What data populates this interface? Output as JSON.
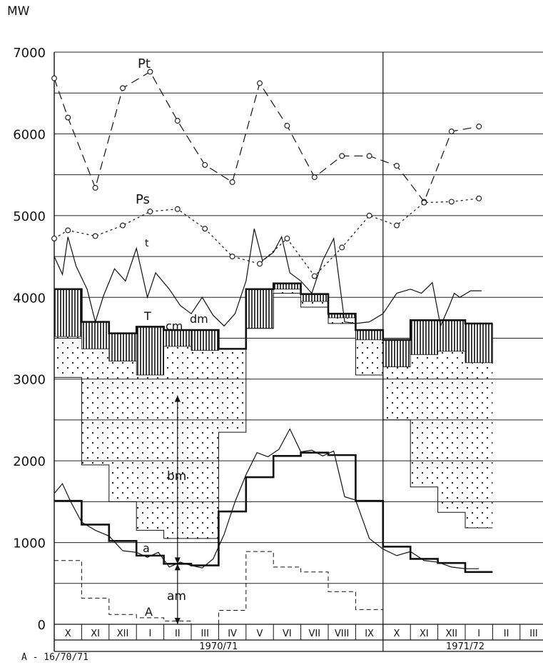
{
  "figure": {
    "unit_label": "MW",
    "footer_code": "A - 16/70/71"
  },
  "chart_data": {
    "type": "line",
    "ylim": [
      0,
      7000
    ],
    "y_ticks": [
      0,
      1000,
      2000,
      3000,
      4000,
      5000,
      6000,
      7000
    ],
    "grid": true,
    "months": [
      "X",
      "XI",
      "XII",
      "I",
      "II",
      "III",
      "IV",
      "V",
      "VI",
      "VII",
      "VIII",
      "IX",
      "X",
      "XI",
      "XII",
      "I",
      "II",
      "III"
    ],
    "periods": [
      {
        "label": "1970/71",
        "months": 12
      },
      {
        "label": "1971/72",
        "months": 6
      }
    ],
    "series": [
      {
        "name": "Pt",
        "style": "dashed",
        "x": [
          0,
          0.5,
          1.5,
          2.5,
          3.5,
          4.5,
          5.5,
          6.5,
          7.5,
          8.5,
          9.5,
          10.5,
          11.5,
          12.5,
          13.5,
          14.5,
          15.5
        ],
        "values": [
          6680,
          6200,
          5340,
          6560,
          6760,
          6160,
          5620,
          5410,
          6620,
          6100,
          5470,
          5730,
          5730,
          5610,
          5170,
          6030,
          6090
        ]
      },
      {
        "name": "Ps",
        "style": "dotted",
        "x": [
          0,
          0.5,
          1.5,
          2.5,
          3.5,
          4.5,
          5.5,
          6.5,
          7.5,
          8.5,
          9.5,
          10.5,
          11.5,
          12.5,
          13.5,
          14.5,
          15.5
        ],
        "values": [
          4720,
          4820,
          4750,
          4880,
          5050,
          5080,
          4840,
          4500,
          4410,
          4720,
          4260,
          4610,
          5000,
          4880,
          5160,
          5170,
          5210
        ]
      },
      {
        "name": "t",
        "style": "thin",
        "x": [
          0,
          0.3,
          0.5,
          0.8,
          1.2,
          1.5,
          1.8,
          2.2,
          2.6,
          3.0,
          3.4,
          3.7,
          4.2,
          4.6,
          5.0,
          5.4,
          5.8,
          6.2,
          6.6,
          7.0,
          7.3,
          7.6,
          8.0,
          8.3,
          8.6,
          9.0,
          9.4,
          9.8,
          10.2,
          10.6,
          11.0,
          11.5,
          12.0,
          12.5,
          13.0,
          13.4,
          13.8,
          14.1,
          14.4,
          14.6,
          14.8,
          15.2,
          15.6
        ],
        "values": [
          4500,
          4280,
          4740,
          4380,
          4100,
          3700,
          4020,
          4350,
          4200,
          4600,
          4000,
          4300,
          4100,
          3900,
          3800,
          4000,
          3780,
          3650,
          3800,
          4200,
          4840,
          4450,
          4550,
          4740,
          4300,
          4200,
          4050,
          4450,
          4720,
          3700,
          3680,
          3700,
          3800,
          4050,
          4100,
          4050,
          4180,
          3650,
          3880,
          4050,
          4000,
          4080,
          4080
        ]
      },
      {
        "name": "a",
        "style": "thin",
        "x": [
          0,
          0.3,
          0.6,
          1.0,
          1.5,
          2.0,
          2.5,
          3.0,
          3.4,
          3.8,
          4.2,
          4.6,
          5.0,
          5.4,
          5.8,
          6.2,
          6.6,
          7.0,
          7.4,
          7.8,
          8.2,
          8.6,
          9.0,
          9.4,
          9.8,
          10.2,
          10.6,
          11.0,
          11.5,
          12.0,
          12.5,
          13.0,
          13.5,
          14.0,
          14.5,
          15.0,
          15.5
        ],
        "values": [
          1600,
          1720,
          1500,
          1250,
          1150,
          1080,
          900,
          880,
          820,
          880,
          700,
          760,
          720,
          690,
          800,
          1100,
          1500,
          1830,
          2100,
          2050,
          2140,
          2390,
          2110,
          2130,
          2060,
          2120,
          1560,
          1520,
          1050,
          920,
          840,
          890,
          780,
          760,
          700,
          680,
          680
        ]
      }
    ],
    "monthly_blocks": {
      "T": [
        4100,
        3700,
        3560,
        3640,
        3600,
        3600,
        3370,
        4100,
        4170,
        4040,
        3800,
        3600,
        3480,
        3720,
        3720,
        3680
      ],
      "b": [
        3520,
        3370,
        3220,
        3050,
        3400,
        3350,
        3370,
        3620,
        4100,
        3950,
        3750,
        3480,
        3150,
        3300,
        3340,
        3200
      ],
      "c": [
        3020,
        2000,
        1850,
        1500,
        2800,
        2700,
        2350,
        3700,
        4080,
        3900,
        3700,
        3050,
        2580,
        2560,
        2450,
        2530
      ],
      "d": [
        3020,
        1950,
        1500,
        1150,
        1050,
        1050,
        2350,
        3620,
        4050,
        3880,
        3680,
        3050,
        2500,
        1680,
        1370,
        1180
      ],
      "m_upper": [
        3020,
        1950,
        1500,
        1150,
        1050,
        1050,
        2350,
        3620,
        4050,
        3880,
        3680,
        3050,
        2500,
        1680,
        1370,
        1180
      ],
      "m_lower_line": [
        1510,
        1220,
        1020,
        840,
        740,
        720,
        1380,
        1800,
        2060,
        2100,
        2070,
        1510,
        950,
        800,
        750,
        640
      ]
    },
    "A_dashed": [
      780,
      320,
      120,
      80,
      40,
      0,
      170,
      890,
      700,
      640,
      400,
      180
    ],
    "annotations": {
      "Pt": "Pt",
      "Ps": "Ps",
      "t": "t",
      "T": "T",
      "cm": "cm",
      "dm": "dm",
      "bm": "bm",
      "am": "am",
      "a": "a",
      "A": "A"
    }
  }
}
